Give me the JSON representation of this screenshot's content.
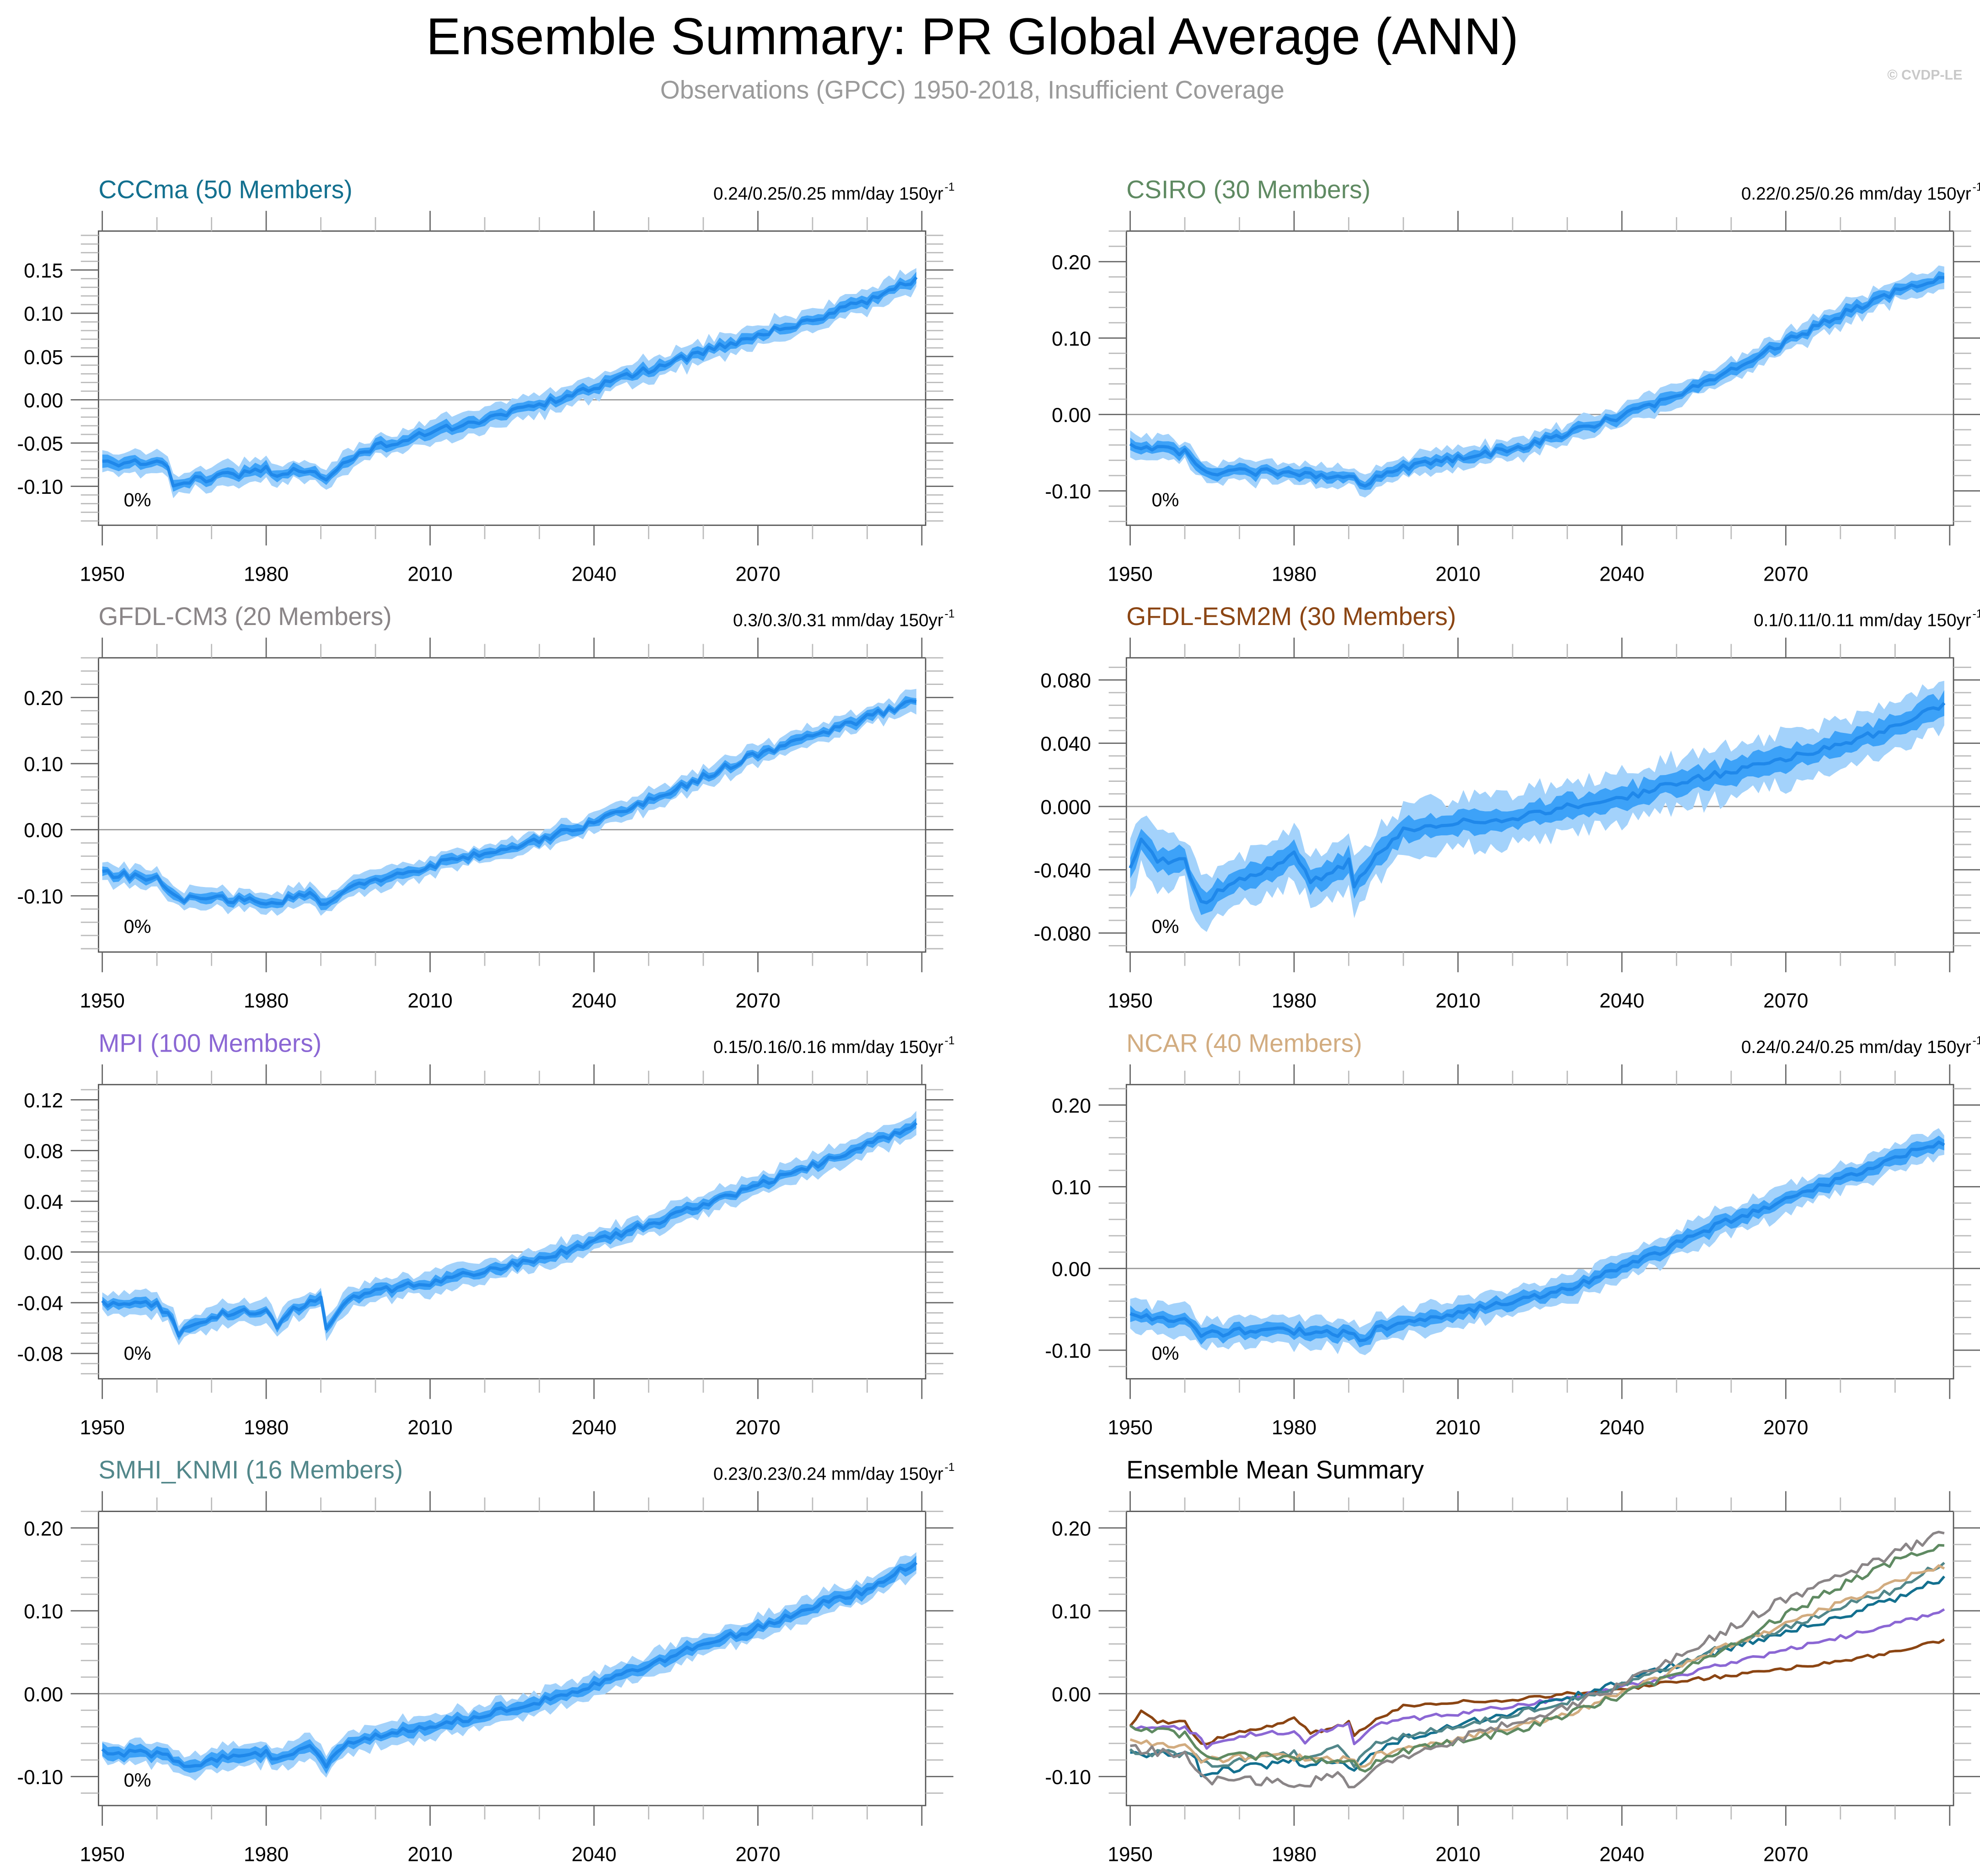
{
  "header": {
    "title": "Ensemble Summary: PR Global Average (ANN)",
    "subtitle": "Observations (GPCC) 1950-2018, Insufficient Coverage",
    "copyright": "© CVDP-LE"
  },
  "colors": {
    "band_outer": "#a3d2fb",
    "band_inner": "#3da2f8",
    "mean_line": "#1f88ea",
    "zero_line": "#999999",
    "axis": "#555555"
  },
  "chart_data": [
    {
      "type": "area",
      "title": "CCCma (50 Members)",
      "title_color": "#13708f",
      "trend_label": "0.24/0.25/0.25 mm/day 150yr",
      "trend_superscript": "-1",
      "annotation": "0%",
      "xlim": [
        1950,
        2100
      ],
      "xticks": [
        1950,
        1980,
        2010,
        2040,
        2070
      ],
      "ylim": [
        -0.145,
        0.195
      ],
      "yticks": [
        -0.1,
        -0.05,
        0.0,
        0.05,
        0.1,
        0.15
      ],
      "ytick_labels": [
        "-0.10",
        "-0.05",
        "0.00",
        "0.05",
        "0.10",
        "0.15"
      ],
      "mean_keypoints": [
        [
          1950,
          -0.072
        ],
        [
          1955,
          -0.073
        ],
        [
          1962,
          -0.075
        ],
        [
          1963,
          -0.096
        ],
        [
          1970,
          -0.09
        ],
        [
          1975,
          -0.086
        ],
        [
          1980,
          -0.08
        ],
        [
          1982,
          -0.086
        ],
        [
          1988,
          -0.08
        ],
        [
          1991,
          -0.093
        ],
        [
          1995,
          -0.068
        ],
        [
          2000,
          -0.055
        ],
        [
          2010,
          -0.037
        ],
        [
          2020,
          -0.024
        ],
        [
          2030,
          -0.005
        ],
        [
          2040,
          0.014
        ],
        [
          2050,
          0.035
        ],
        [
          2060,
          0.055
        ],
        [
          2070,
          0.075
        ],
        [
          2080,
          0.092
        ],
        [
          2090,
          0.115
        ],
        [
          2097,
          0.135
        ],
        [
          2099,
          0.138
        ]
      ],
      "inner_halfwidth": 0.006,
      "outer_halfwidth": 0.012
    },
    {
      "type": "area",
      "title": "CSIRO (30 Members)",
      "title_color": "#5f8a62",
      "trend_label": "0.22/0.25/0.26 mm/day 150yr",
      "trend_superscript": "-1",
      "annotation": "0%",
      "xlim": [
        1950,
        2100
      ],
      "xticks": [
        1950,
        1980,
        2010,
        2040,
        2070
      ],
      "ylim": [
        -0.145,
        0.24
      ],
      "yticks": [
        -0.1,
        0.0,
        0.1,
        0.2
      ],
      "ytick_labels": [
        "-0.10",
        "0.00",
        "0.10",
        "0.20"
      ],
      "mean_keypoints": [
        [
          1950,
          -0.04
        ],
        [
          1960,
          -0.05
        ],
        [
          1964,
          -0.075
        ],
        [
          1975,
          -0.075
        ],
        [
          1985,
          -0.08
        ],
        [
          1991,
          -0.078
        ],
        [
          1992,
          -0.092
        ],
        [
          2000,
          -0.07
        ],
        [
          2010,
          -0.058
        ],
        [
          2020,
          -0.045
        ],
        [
          2030,
          -0.025
        ],
        [
          2040,
          -0.002
        ],
        [
          2050,
          0.025
        ],
        [
          2060,
          0.06
        ],
        [
          2070,
          0.095
        ],
        [
          2080,
          0.13
        ],
        [
          2090,
          0.16
        ],
        [
          2099,
          0.182
        ]
      ],
      "inner_halfwidth": 0.007,
      "outer_halfwidth": 0.013
    },
    {
      "type": "area",
      "title": "GFDL-CM3 (20 Members)",
      "title_color": "#8a8587",
      "trend_label": "0.3/0.3/0.31 mm/day 150yr",
      "trend_superscript": "-1",
      "annotation": "0%",
      "xlim": [
        1950,
        2100
      ],
      "xticks": [
        1950,
        1980,
        2010,
        2040,
        2070
      ],
      "ylim": [
        -0.185,
        0.26
      ],
      "yticks": [
        -0.1,
        0.0,
        0.1,
        0.2
      ],
      "ytick_labels": [
        "-0.10",
        "0.00",
        "0.10",
        "0.20"
      ],
      "mean_keypoints": [
        [
          1950,
          -0.065
        ],
        [
          1960,
          -0.075
        ],
        [
          1964,
          -0.105
        ],
        [
          1975,
          -0.105
        ],
        [
          1982,
          -0.11
        ],
        [
          1988,
          -0.095
        ],
        [
          1991,
          -0.115
        ],
        [
          1995,
          -0.09
        ],
        [
          2010,
          -0.055
        ],
        [
          2020,
          -0.035
        ],
        [
          2030,
          -0.015
        ],
        [
          2040,
          0.01
        ],
        [
          2050,
          0.045
        ],
        [
          2060,
          0.08
        ],
        [
          2070,
          0.115
        ],
        [
          2080,
          0.14
        ],
        [
          2090,
          0.17
        ],
        [
          2099,
          0.195
        ]
      ],
      "inner_halfwidth": 0.007,
      "outer_halfwidth": 0.014
    },
    {
      "type": "area",
      "title": "GFDL-ESM2M (30 Members)",
      "title_color": "#8b4513",
      "trend_label": "0.1/0.11/0.11 mm/day 150yr",
      "trend_superscript": "-1",
      "annotation": "0%",
      "xlim": [
        1950,
        2100
      ],
      "xticks": [
        1950,
        1980,
        2010,
        2040,
        2070
      ],
      "ylim": [
        -0.092,
        0.094
      ],
      "yticks": [
        -0.08,
        -0.04,
        0.0,
        0.04,
        0.08
      ],
      "ytick_labels": [
        "-0.080",
        "-0.040",
        "0.000",
        "0.040",
        "0.080"
      ],
      "mean_keypoints": [
        [
          1950,
          -0.04
        ],
        [
          1952,
          -0.022
        ],
        [
          1955,
          -0.034
        ],
        [
          1960,
          -0.035
        ],
        [
          1963,
          -0.061
        ],
        [
          1970,
          -0.045
        ],
        [
          1975,
          -0.04
        ],
        [
          1980,
          -0.03
        ],
        [
          1983,
          -0.048
        ],
        [
          1990,
          -0.035
        ],
        [
          1991,
          -0.05
        ],
        [
          1995,
          -0.03
        ],
        [
          2000,
          -0.015
        ],
        [
          2010,
          -0.01
        ],
        [
          2020,
          -0.007
        ],
        [
          2030,
          0.0
        ],
        [
          2040,
          0.005
        ],
        [
          2050,
          0.015
        ],
        [
          2060,
          0.022
        ],
        [
          2070,
          0.03
        ],
        [
          2080,
          0.04
        ],
        [
          2090,
          0.05
        ],
        [
          2099,
          0.065
        ]
      ],
      "inner_halfwidth": 0.007,
      "outer_halfwidth": 0.015
    },
    {
      "type": "area",
      "title": "MPI (100 Members)",
      "title_color": "#8b67d4",
      "trend_label": "0.15/0.16/0.16 mm/day 150yr",
      "trend_superscript": "-1",
      "annotation": "0%",
      "xlim": [
        1950,
        2100
      ],
      "xticks": [
        1950,
        1980,
        2010,
        2040,
        2070
      ],
      "ylim": [
        -0.1,
        0.132
      ],
      "yticks": [
        -0.08,
        -0.04,
        0.0,
        0.04,
        0.08,
        0.12
      ],
      "ytick_labels": [
        "-0.08",
        "-0.04",
        "0.00",
        "0.04",
        "0.08",
        "0.12"
      ],
      "mean_keypoints": [
        [
          1950,
          -0.04
        ],
        [
          1960,
          -0.042
        ],
        [
          1962,
          -0.048
        ],
        [
          1964,
          -0.065
        ],
        [
          1970,
          -0.05
        ],
        [
          1975,
          -0.048
        ],
        [
          1980,
          -0.045
        ],
        [
          1982,
          -0.06
        ],
        [
          1985,
          -0.045
        ],
        [
          1990,
          -0.037
        ],
        [
          1991,
          -0.063
        ],
        [
          1995,
          -0.036
        ],
        [
          2000,
          -0.031
        ],
        [
          2010,
          -0.024
        ],
        [
          2020,
          -0.015
        ],
        [
          2030,
          -0.005
        ],
        [
          2040,
          0.008
        ],
        [
          2050,
          0.022
        ],
        [
          2060,
          0.037
        ],
        [
          2070,
          0.053
        ],
        [
          2080,
          0.068
        ],
        [
          2090,
          0.085
        ],
        [
          2099,
          0.1
        ]
      ],
      "inner_halfwidth": 0.004,
      "outer_halfwidth": 0.008
    },
    {
      "type": "area",
      "title": "NCAR (40 Members)",
      "title_color": "#d2ac80",
      "trend_label": "0.24/0.24/0.25 mm/day 150yr",
      "trend_superscript": "-1",
      "annotation": "0%",
      "xlim": [
        1950,
        2100
      ],
      "xticks": [
        1950,
        1980,
        2010,
        2040,
        2070
      ],
      "ylim": [
        -0.135,
        0.225
      ],
      "yticks": [
        -0.1,
        0.0,
        0.1,
        0.2
      ],
      "ytick_labels": [
        "-0.10",
        "0.00",
        "0.10",
        "0.20"
      ],
      "mean_keypoints": [
        [
          1950,
          -0.058
        ],
        [
          1960,
          -0.065
        ],
        [
          1963,
          -0.08
        ],
        [
          1975,
          -0.075
        ],
        [
          1985,
          -0.078
        ],
        [
          1991,
          -0.08
        ],
        [
          1992,
          -0.09
        ],
        [
          1995,
          -0.075
        ],
        [
          2010,
          -0.055
        ],
        [
          2020,
          -0.04
        ],
        [
          2030,
          -0.025
        ],
        [
          2040,
          0.0
        ],
        [
          2050,
          0.03
        ],
        [
          2060,
          0.06
        ],
        [
          2070,
          0.085
        ],
        [
          2080,
          0.11
        ],
        [
          2090,
          0.135
        ],
        [
          2099,
          0.155
        ]
      ],
      "inner_halfwidth": 0.008,
      "outer_halfwidth": 0.016
    },
    {
      "type": "area",
      "title": "SMHI_KNMI (16 Members)",
      "title_color": "#52878a",
      "trend_label": "0.23/0.23/0.24 mm/day 150yr",
      "trend_superscript": "-1",
      "annotation": "0%",
      "xlim": [
        1950,
        2100
      ],
      "xticks": [
        1950,
        1980,
        2010,
        2040,
        2070
      ],
      "ylim": [
        -0.135,
        0.22
      ],
      "yticks": [
        -0.1,
        0.0,
        0.1,
        0.2
      ],
      "ytick_labels": [
        "-0.10",
        "0.00",
        "0.10",
        "0.20"
      ],
      "mean_keypoints": [
        [
          1950,
          -0.07
        ],
        [
          1957,
          -0.072
        ],
        [
          1962,
          -0.075
        ],
        [
          1965,
          -0.09
        ],
        [
          1970,
          -0.08
        ],
        [
          1975,
          -0.075
        ],
        [
          1980,
          -0.07
        ],
        [
          1982,
          -0.08
        ],
        [
          1988,
          -0.06
        ],
        [
          1991,
          -0.085
        ],
        [
          1995,
          -0.06
        ],
        [
          2000,
          -0.05
        ],
        [
          2010,
          -0.04
        ],
        [
          2020,
          -0.025
        ],
        [
          2030,
          -0.01
        ],
        [
          2040,
          0.01
        ],
        [
          2050,
          0.035
        ],
        [
          2060,
          0.06
        ],
        [
          2070,
          0.08
        ],
        [
          2080,
          0.105
        ],
        [
          2090,
          0.125
        ],
        [
          2099,
          0.16
        ]
      ],
      "inner_halfwidth": 0.007,
      "outer_halfwidth": 0.013
    },
    {
      "type": "line",
      "title": "Ensemble Mean Summary",
      "title_color": "#000000",
      "xlim": [
        1950,
        2100
      ],
      "xticks": [
        1950,
        1980,
        2010,
        2040,
        2070
      ],
      "ylim": [
        -0.135,
        0.22
      ],
      "yticks": [
        -0.1,
        0.0,
        0.1,
        0.2
      ],
      "ytick_labels": [
        "-0.10",
        "0.00",
        "0.10",
        "0.20"
      ],
      "series": [
        {
          "name": "GFDL-ESM2M",
          "color": "#8b4513",
          "source_index": 3
        },
        {
          "name": "MPI",
          "color": "#8b67d4",
          "source_index": 4
        },
        {
          "name": "CCCma",
          "color": "#13708f",
          "source_index": 0
        },
        {
          "name": "SMHI_KNMI",
          "color": "#52878a",
          "source_index": 6
        },
        {
          "name": "NCAR",
          "color": "#d2ac80",
          "source_index": 5
        },
        {
          "name": "CSIRO",
          "color": "#5f8a62",
          "source_index": 1
        },
        {
          "name": "GFDL-CM3",
          "color": "#8a8587",
          "source_index": 2
        }
      ]
    }
  ]
}
